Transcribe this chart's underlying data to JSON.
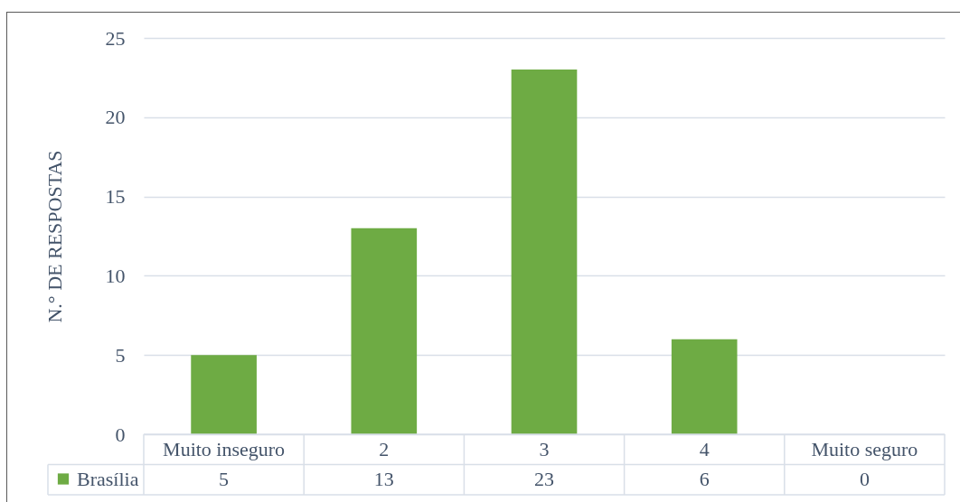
{
  "chart_data": {
    "type": "bar",
    "ylabel": "N.° DE RESPOSTAS",
    "categories": [
      "Muito inseguro",
      "2",
      "3",
      "4",
      "Muito seguro"
    ],
    "series": [
      {
        "name": "Brasília",
        "color": "#6eab44",
        "values": [
          5,
          13,
          23,
          6,
          0
        ]
      }
    ],
    "ylim": [
      0,
      25
    ],
    "yticks": [
      0,
      5,
      10,
      15,
      20,
      25
    ],
    "grid": "y",
    "legend": "bottom left",
    "data_labels": true
  }
}
